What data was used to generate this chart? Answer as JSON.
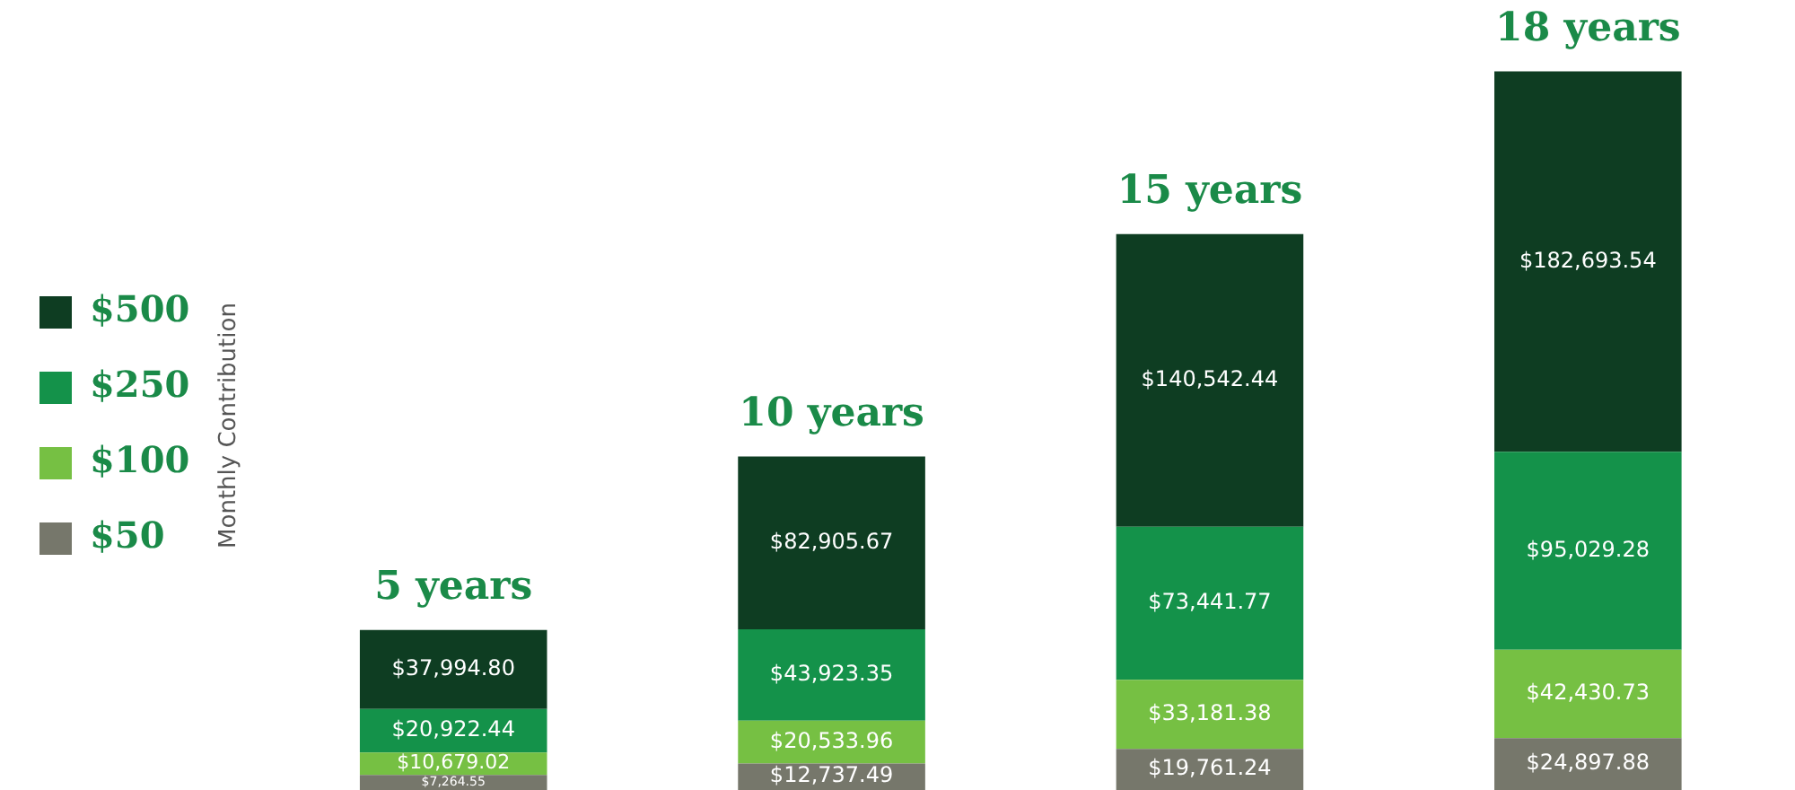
{
  "chart_data": {
    "type": "bar",
    "stacked": true,
    "categories": [
      "5 years",
      "10 years",
      "15 years",
      "18 years"
    ],
    "ylabel": "Monthly Contribution",
    "legend": "left",
    "tick_labels": false,
    "grid": false,
    "series": [
      {
        "name": "$50",
        "color": "#76776b",
        "values": [
          7264.55,
          12737.49,
          19761.24,
          24897.88
        ],
        "value_labels": [
          "$7,264.55",
          "$12,737.49",
          "$19,761.24",
          "$24,897.88"
        ]
      },
      {
        "name": "$100",
        "color": "#76c043",
        "values": [
          10679.02,
          20533.96,
          33181.38,
          42430.73
        ],
        "value_labels": [
          "$10,679.02",
          "$20,533.96",
          "$33,181.38",
          "$42,430.73"
        ]
      },
      {
        "name": "$250",
        "color": "#14924a",
        "values": [
          20922.44,
          43923.35,
          73441.77,
          95029.28
        ],
        "value_labels": [
          "$20,922.44",
          "$43,923.35",
          "$73,441.77",
          "$95,029.28"
        ]
      },
      {
        "name": "$500",
        "color": "#0e3d22",
        "values": [
          37994.8,
          82905.67,
          140542.44,
          182693.54
        ],
        "value_labels": [
          "$37,994.80",
          "$82,905.67",
          "$140,542.44",
          "$182,693.54"
        ]
      }
    ]
  }
}
